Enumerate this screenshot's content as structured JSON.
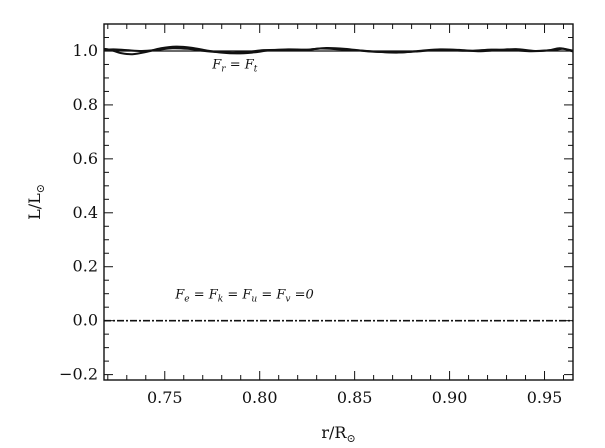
{
  "chart_data": {
    "type": "line",
    "xlabel": "r/R",
    "xlabel_sub": "⊙",
    "ylabel": "L/L",
    "ylabel_sub": "⊙",
    "xlim": [
      0.718,
      0.965
    ],
    "ylim": [
      -0.22,
      1.1
    ],
    "x_ticks": [
      0.75,
      0.8,
      0.85,
      0.9,
      0.95
    ],
    "x_tick_labels": [
      "0.75",
      "0.80",
      "0.85",
      "0.90",
      "0.95"
    ],
    "y_ticks": [
      -0.2,
      0.0,
      0.2,
      0.4,
      0.6,
      0.8,
      1.0
    ],
    "y_tick_labels": [
      "−0.2",
      "0.0",
      "0.2",
      "0.4",
      "0.6",
      "0.8",
      "1.0"
    ],
    "grid": false,
    "series": [
      {
        "style": "solid-thin",
        "x": [
          0.718,
          0.965
        ],
        "y": [
          1.0,
          1.0
        ]
      },
      {
        "style": "solid-thick",
        "x": [
          0.718,
          0.722,
          0.727,
          0.733,
          0.74,
          0.748,
          0.756,
          0.764,
          0.772,
          0.78,
          0.788,
          0.796,
          0.805,
          0.815,
          0.825,
          0.835,
          0.845,
          0.855,
          0.865,
          0.875,
          0.885,
          0.895,
          0.905,
          0.915,
          0.925,
          0.935,
          0.945,
          0.955,
          0.96,
          0.965
        ],
        "y": [
          1.008,
          1.003,
          0.992,
          0.988,
          0.996,
          1.01,
          1.016,
          1.012,
          1.002,
          0.994,
          0.991,
          0.994,
          1.002,
          1.006,
          1.005,
          1.011,
          1.008,
          1.0,
          0.996,
          0.995,
          1.001,
          1.006,
          1.004,
          0.999,
          1.003,
          1.007,
          1.0,
          1.004,
          1.008,
          0.998
        ]
      },
      {
        "style": "solid-thick",
        "x": [
          0.718,
          0.723,
          0.73,
          0.738,
          0.746,
          0.754,
          0.762,
          0.77,
          0.778,
          0.786,
          0.794,
          0.802,
          0.812,
          0.822,
          0.832,
          0.842,
          0.852,
          0.862,
          0.872,
          0.882,
          0.892,
          0.902,
          0.912,
          0.922,
          0.932,
          0.942,
          0.952,
          0.958,
          0.965
        ],
        "y": [
          1.004,
          1.006,
          1.003,
          1.0,
          1.004,
          1.01,
          1.008,
          1.001,
          0.996,
          0.994,
          0.997,
          1.003,
          1.004,
          1.002,
          1.009,
          1.006,
          1.002,
          0.997,
          0.994,
          0.998,
          1.003,
          1.002,
          1.001,
          1.005,
          1.004,
          0.999,
          1.002,
          1.01,
          1.001
        ]
      },
      {
        "style": "dash-dot",
        "x": [
          0.718,
          0.965
        ],
        "y": [
          0.0,
          0.0
        ]
      }
    ],
    "annotations": [
      {
        "x": 0.775,
        "y": 0.935,
        "parts": [
          [
            "F",
            "r"
          ],
          [
            "= F",
            "t"
          ]
        ]
      },
      {
        "x": 0.7555,
        "y": 0.082,
        "parts": [
          [
            "F",
            "e"
          ],
          [
            "= F",
            "k"
          ],
          [
            "= F",
            "u"
          ],
          [
            "= F",
            "v"
          ],
          [
            "=0",
            ""
          ]
        ]
      }
    ]
  }
}
